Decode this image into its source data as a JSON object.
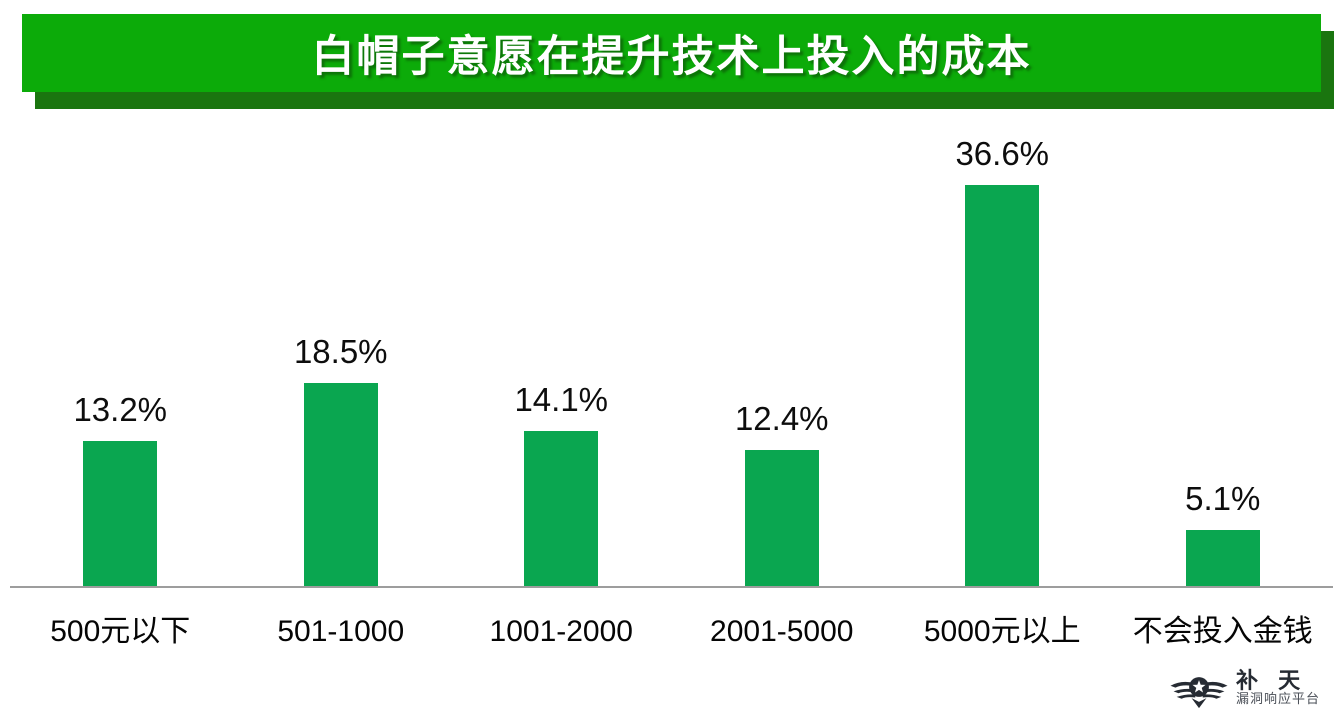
{
  "header": {
    "title": "白帽子意愿在提升技术上投入的成本"
  },
  "chart_data": {
    "type": "bar",
    "title": "白帽子意愿在提升技术上投入的成本",
    "categories": [
      "500元以下",
      "501-1000",
      "1001-2000",
      "2001-5000",
      "5000元以上",
      "不会投入金钱"
    ],
    "values": [
      13.2,
      18.5,
      14.1,
      12.4,
      36.6,
      5.1
    ],
    "labels": [
      "13.2%",
      "18.5%",
      "14.1%",
      "12.4%",
      "36.6%",
      "5.1%"
    ],
    "xlabel": "",
    "ylabel": "",
    "ylim": [
      0,
      40
    ],
    "grid": false,
    "legend": false,
    "bar_color": "#0aa650"
  },
  "logo": {
    "name": "补 天",
    "subtitle": "漏洞响应平台"
  },
  "colors": {
    "banner": "#0cab09",
    "banner_shadow": "#1a750f",
    "frame": "#10ae0d",
    "bar": "#0aa650",
    "axis": "#9d9d9d",
    "title_text": "#ffffff"
  }
}
